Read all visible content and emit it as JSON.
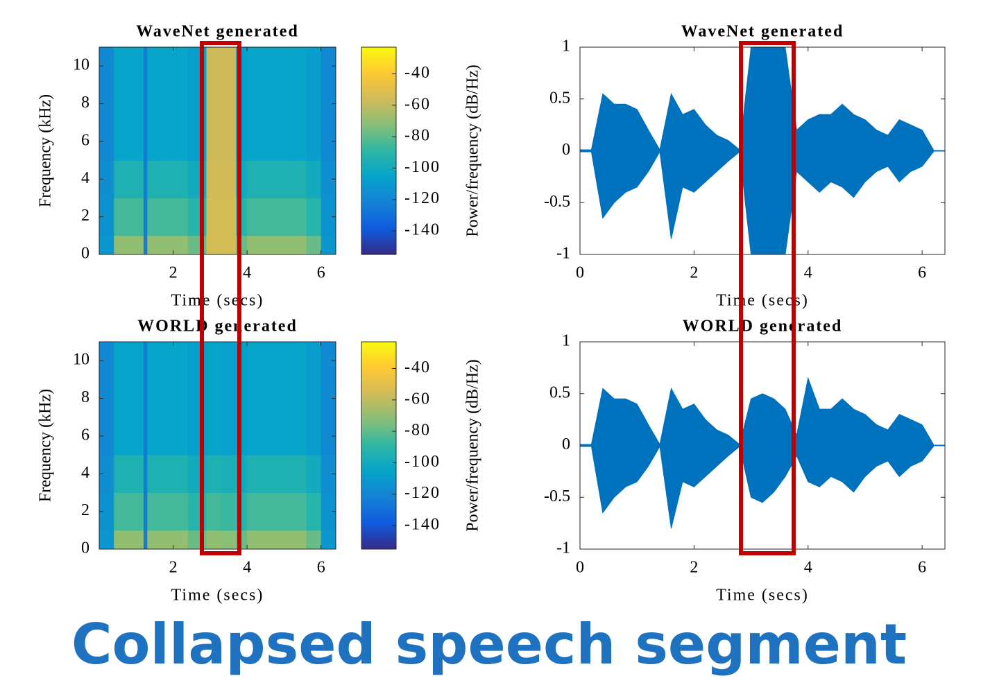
{
  "chart_data": [
    {
      "type": "spectrogram",
      "title": "WaveNet generated",
      "xlabel": "Time (secs)",
      "ylabel": "Frequency (kHz)",
      "xlim": [
        0,
        6.4
      ],
      "ylim": [
        0,
        11
      ],
      "xticks": [
        2,
        4,
        6
      ],
      "yticks": [
        0,
        2,
        4,
        6,
        8,
        10
      ],
      "xbins": [
        0,
        0.4,
        0.8,
        1.2,
        1.3,
        1.6,
        2.0,
        2.4,
        2.9,
        3.3,
        3.7,
        4.0,
        4.4,
        4.8,
        5.2,
        5.6,
        6.0,
        6.4
      ],
      "ybins": [
        0,
        1,
        3,
        5,
        11
      ],
      "values": [
        [
          -112,
          -70,
          -70,
          -125,
          -70,
          -70,
          -70,
          -78,
          -55,
          -55,
          -78,
          -70,
          -70,
          -70,
          -70,
          -78,
          -112
        ],
        [
          -114,
          -85,
          -85,
          -125,
          -85,
          -85,
          -85,
          -92,
          -55,
          -55,
          -92,
          -85,
          -85,
          -85,
          -85,
          -92,
          -114
        ],
        [
          -116,
          -95,
          -95,
          -125,
          -95,
          -95,
          -95,
          -100,
          -56,
          -56,
          -100,
          -95,
          -95,
          -95,
          -95,
          -100,
          -116
        ],
        [
          -118,
          -105,
          -105,
          -125,
          -105,
          -105,
          -105,
          -108,
          -57,
          -57,
          -108,
          -105,
          -105,
          -105,
          -105,
          -108,
          -118
        ]
      ],
      "clim": [
        -155,
        -23
      ],
      "cticks": [
        -40,
        -60,
        -80,
        -100,
        -120,
        -140
      ],
      "clabel": "Power/frequency (dB/Hz)",
      "colormap": [
        "#352a87",
        "#0f5cdd",
        "#1481d6",
        "#06a4ca",
        "#2eb7a4",
        "#87bf77",
        "#d1bb59",
        "#fec832",
        "#f9fb0e"
      ]
    },
    {
      "type": "waveform",
      "title": "WaveNet generated",
      "xlabel": "Time (secs)",
      "color": "#0072bd",
      "xlim": [
        0,
        6.4
      ],
      "ylim": [
        -1,
        1
      ],
      "xticks": [
        0,
        2,
        4,
        6
      ],
      "yticks": [
        -1,
        -0.5,
        0,
        0.5,
        1
      ],
      "x": [
        0,
        0.2,
        0.4,
        0.6,
        0.8,
        1.0,
        1.2,
        1.4,
        1.6,
        1.8,
        2.0,
        2.2,
        2.4,
        2.6,
        2.8,
        3.0,
        3.2,
        3.4,
        3.6,
        3.8,
        4.0,
        4.2,
        4.4,
        4.6,
        4.8,
        5.0,
        5.2,
        5.4,
        5.6,
        5.8,
        6.0,
        6.2
      ],
      "upper": [
        0.01,
        0.01,
        0.55,
        0.45,
        0.45,
        0.4,
        0.2,
        0.01,
        0.55,
        0.35,
        0.4,
        0.25,
        0.15,
        0.1,
        0.01,
        1,
        1,
        1,
        1,
        0.2,
        0.3,
        0.35,
        0.35,
        0.45,
        0.35,
        0.3,
        0.2,
        0.15,
        0.3,
        0.25,
        0.2,
        0.01
      ],
      "lower": [
        -0.01,
        -0.01,
        -0.65,
        -0.5,
        -0.4,
        -0.35,
        -0.2,
        -0.01,
        -0.85,
        -0.35,
        -0.4,
        -0.3,
        -0.2,
        -0.1,
        -0.01,
        -1,
        -1,
        -1,
        -1,
        -0.2,
        -0.3,
        -0.4,
        -0.3,
        -0.35,
        -0.45,
        -0.3,
        -0.2,
        -0.15,
        -0.3,
        -0.2,
        -0.15,
        -0.01
      ]
    },
    {
      "type": "spectrogram",
      "title": "WORLD generated",
      "xlabel": "Time (secs)",
      "ylabel": "Frequency (kHz)",
      "xlim": [
        0,
        6.4
      ],
      "ylim": [
        0,
        11
      ],
      "xticks": [
        2,
        4,
        6
      ],
      "yticks": [
        0,
        2,
        4,
        6,
        8,
        10
      ],
      "xbins": [
        0,
        0.4,
        0.8,
        1.2,
        1.3,
        1.6,
        2.0,
        2.4,
        2.9,
        3.3,
        3.7,
        4.0,
        4.4,
        4.8,
        5.2,
        5.6,
        6.0,
        6.4
      ],
      "ybins": [
        0,
        1,
        3,
        5,
        11
      ],
      "values": [
        [
          -112,
          -70,
          -70,
          -125,
          -70,
          -70,
          -70,
          -78,
          -70,
          -72,
          -78,
          -70,
          -70,
          -70,
          -70,
          -78,
          -112
        ],
        [
          -114,
          -85,
          -85,
          -125,
          -85,
          -85,
          -85,
          -92,
          -85,
          -87,
          -92,
          -85,
          -85,
          -85,
          -85,
          -92,
          -114
        ],
        [
          -116,
          -95,
          -95,
          -125,
          -95,
          -95,
          -95,
          -100,
          -95,
          -97,
          -100,
          -95,
          -95,
          -95,
          -95,
          -100,
          -116
        ],
        [
          -118,
          -105,
          -105,
          -125,
          -105,
          -105,
          -105,
          -108,
          -105,
          -107,
          -108,
          -105,
          -105,
          -105,
          -105,
          -108,
          -118
        ]
      ],
      "clim": [
        -155,
        -23
      ],
      "cticks": [
        -40,
        -60,
        -80,
        -100,
        -120,
        -140
      ],
      "clabel": "Power/frequency (dB/Hz)",
      "colormap": [
        "#352a87",
        "#0f5cdd",
        "#1481d6",
        "#06a4ca",
        "#2eb7a4",
        "#87bf77",
        "#d1bb59",
        "#fec832",
        "#f9fb0e"
      ]
    },
    {
      "type": "waveform",
      "title": "WORLD generated",
      "xlabel": "Time (secs)",
      "color": "#0072bd",
      "xlim": [
        0,
        6.4
      ],
      "ylim": [
        -1,
        1
      ],
      "xticks": [
        0,
        2,
        4,
        6
      ],
      "yticks": [
        -1,
        -0.5,
        0,
        0.5,
        1
      ],
      "x": [
        0,
        0.2,
        0.4,
        0.6,
        0.8,
        1.0,
        1.2,
        1.4,
        1.6,
        1.8,
        2.0,
        2.2,
        2.4,
        2.6,
        2.8,
        3.0,
        3.2,
        3.4,
        3.6,
        3.8,
        4.0,
        4.2,
        4.4,
        4.6,
        4.8,
        5.0,
        5.2,
        5.4,
        5.6,
        5.8,
        6.0,
        6.2
      ],
      "upper": [
        0.01,
        0.01,
        0.55,
        0.45,
        0.45,
        0.4,
        0.2,
        0.01,
        0.55,
        0.35,
        0.4,
        0.25,
        0.15,
        0.1,
        0.01,
        0.45,
        0.5,
        0.45,
        0.35,
        0.1,
        0.65,
        0.35,
        0.35,
        0.45,
        0.35,
        0.3,
        0.2,
        0.15,
        0.3,
        0.25,
        0.2,
        0.01
      ],
      "lower": [
        -0.01,
        -0.01,
        -0.65,
        -0.5,
        -0.4,
        -0.35,
        -0.2,
        -0.01,
        -0.8,
        -0.35,
        -0.4,
        -0.3,
        -0.2,
        -0.1,
        -0.01,
        -0.5,
        -0.55,
        -0.45,
        -0.3,
        -0.1,
        -0.35,
        -0.4,
        -0.3,
        -0.35,
        -0.45,
        -0.3,
        -0.2,
        -0.15,
        -0.3,
        -0.2,
        -0.15,
        -0.01
      ]
    }
  ],
  "caption": "Collapsed speech segment"
}
